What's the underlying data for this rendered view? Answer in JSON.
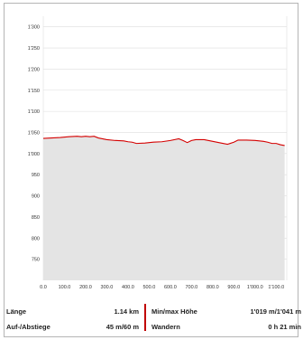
{
  "chart_data": {
    "type": "area",
    "title": "",
    "xlabel": "",
    "ylabel": "",
    "xlim": [
      0,
      1150
    ],
    "ylim": [
      700,
      1325
    ],
    "grid": true,
    "line_color": "#d40000",
    "fill_color": "#e4e4e4",
    "y_ticks": [
      "750",
      "800",
      "850",
      "900",
      "950",
      "1'000",
      "1'050",
      "1'100",
      "1'150",
      "1'200",
      "1'250",
      "1'300"
    ],
    "y_tick_values": [
      750,
      800,
      850,
      900,
      950,
      1000,
      1050,
      1100,
      1150,
      1200,
      1250,
      1300
    ],
    "x_ticks": [
      "0.0",
      "100.0",
      "200.0",
      "300.0",
      "400.0",
      "500.0",
      "600.0",
      "700.0",
      "800.0",
      "900.0",
      "1'000.0",
      "1'100.0"
    ],
    "x_tick_values": [
      0,
      100,
      200,
      300,
      400,
      500,
      600,
      700,
      800,
      900,
      1000,
      1100
    ],
    "series": [
      {
        "x": [
          0,
          40,
          80,
          120,
          160,
          180,
          200,
          220,
          240,
          260,
          300,
          340,
          380,
          400,
          420,
          440,
          480,
          520,
          560,
          600,
          640,
          660,
          680,
          700,
          720,
          760,
          800,
          840,
          870,
          900,
          920,
          960,
          1000,
          1040,
          1060,
          1080,
          1100,
          1120,
          1140
        ],
        "y": [
          1036,
          1037,
          1038,
          1040,
          1041,
          1040,
          1041,
          1040,
          1041,
          1037,
          1033,
          1031,
          1030,
          1028,
          1027,
          1024,
          1025,
          1027,
          1028,
          1031,
          1035,
          1031,
          1026,
          1031,
          1033,
          1033,
          1029,
          1025,
          1022,
          1027,
          1032,
          1032,
          1031,
          1029,
          1027,
          1024,
          1024,
          1021,
          1019
        ]
      }
    ]
  },
  "stats": {
    "length_label": "Länge",
    "length_value": "1.14 km",
    "ascent_label": "Auf-/Abstiege",
    "ascent_value": "45 m/60 m",
    "minmax_label": "Min/max Höhe",
    "minmax_value": "1'019 m/1'041 m",
    "hike_label": "Wandern",
    "hike_value": "0 h 21 min"
  }
}
